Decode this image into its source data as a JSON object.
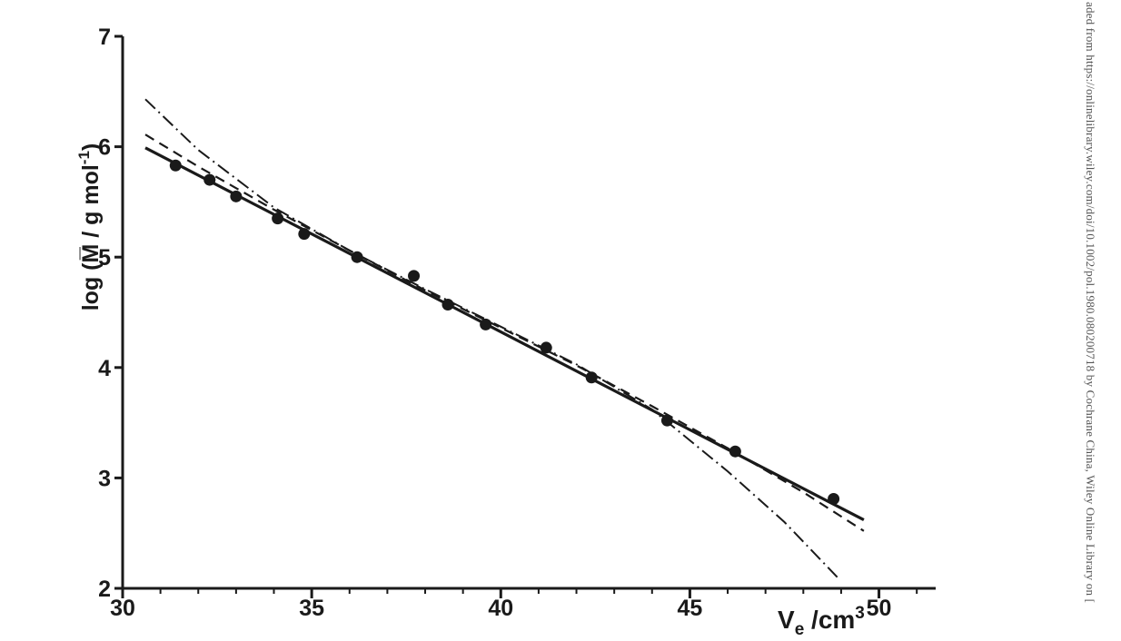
{
  "chart_data": {
    "type": "scatter",
    "xlabel": {
      "main": "V",
      "sub": "e",
      "unit": " /cm",
      "sup": "3"
    },
    "ylabel": {
      "main": "log (M̅ / g mol",
      "sup": "-1",
      "tail": ")"
    },
    "xlim": [
      30,
      51.5
    ],
    "ylim": [
      2,
      7
    ],
    "x_ticks": [
      30,
      35,
      40,
      45,
      50
    ],
    "y_ticks": [
      2,
      3,
      4,
      5,
      6,
      7
    ],
    "x_minor_step": 1,
    "grid": false,
    "colors": {
      "ink": "#1a1a1a",
      "side_text": "#555555"
    },
    "points": [
      {
        "x": 31.4,
        "y": 5.83
      },
      {
        "x": 32.3,
        "y": 5.7
      },
      {
        "x": 33.0,
        "y": 5.55
      },
      {
        "x": 34.1,
        "y": 5.35
      },
      {
        "x": 34.8,
        "y": 5.21
      },
      {
        "x": 36.2,
        "y": 5.0
      },
      {
        "x": 37.7,
        "y": 4.83
      },
      {
        "x": 38.6,
        "y": 4.57
      },
      {
        "x": 39.6,
        "y": 4.39
      },
      {
        "x": 41.2,
        "y": 4.18
      },
      {
        "x": 42.4,
        "y": 3.91
      },
      {
        "x": 44.4,
        "y": 3.52
      },
      {
        "x": 46.2,
        "y": 3.24
      },
      {
        "x": 48.8,
        "y": 2.81
      }
    ],
    "series": [
      {
        "style": "solid",
        "x": [
          30.6,
          49.6
        ],
        "y": [
          5.99,
          2.62
        ]
      },
      {
        "style": "dashed",
        "x": [
          30.6,
          32.0,
          34.0,
          36.0,
          38.0,
          40.0,
          42.0,
          44.0,
          46.0,
          48.0,
          49.6
        ],
        "y": [
          6.11,
          5.82,
          5.43,
          5.06,
          4.7,
          4.36,
          4.02,
          3.65,
          3.27,
          2.87,
          2.52
        ]
      },
      {
        "style": "dash-dot",
        "x": [
          30.6,
          32.0,
          34.0,
          36.0,
          38.0,
          40.0,
          42.0,
          44.0,
          46.0,
          47.5,
          48.9
        ],
        "y": [
          6.43,
          5.97,
          5.45,
          5.06,
          4.71,
          4.37,
          4.03,
          3.62,
          3.06,
          2.6,
          2.1
        ]
      }
    ]
  },
  "side_text": "aded from https://onlinelibrary.wiley.com/doi/10.1002/pol.1980.080200718 by Cochrane China, Wiley Online Library on ["
}
